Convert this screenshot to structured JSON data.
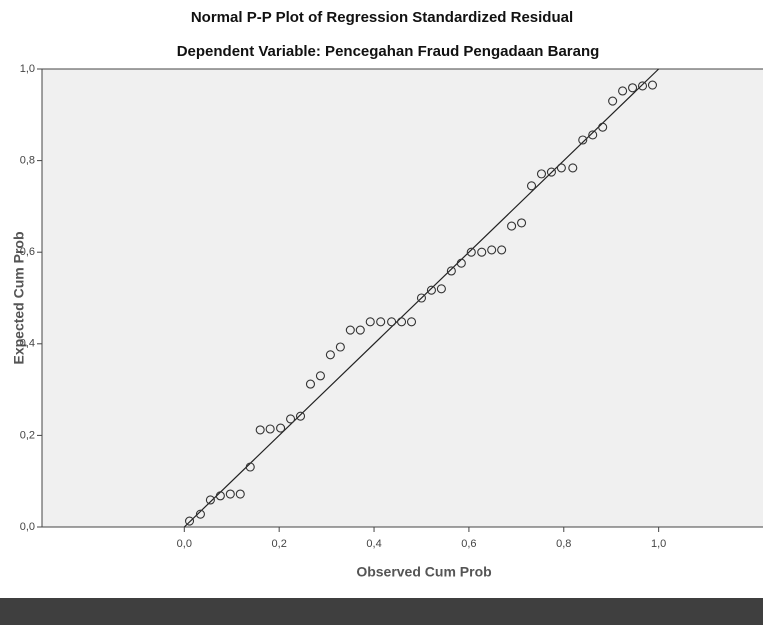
{
  "chart_data": {
    "type": "scatter",
    "title": "Normal P-P Plot of Regression Standardized Residual",
    "subtitle": "Dependent Variable: Pencegahan Fraud Pengadaan Barang",
    "x_label": "Observed Cum Prob",
    "y_label": "Expected Cum Prob",
    "xlim": [
      -0.3,
      1.22
    ],
    "ylim": [
      0,
      1
    ],
    "xticks": [
      {
        "value": 0,
        "label": "0,0"
      },
      {
        "value": 0.2,
        "label": "0,2"
      },
      {
        "value": 0.4,
        "label": "0,4"
      },
      {
        "value": 0.6,
        "label": "0,6"
      },
      {
        "value": 0.8,
        "label": "0,8"
      },
      {
        "value": 1,
        "label": "1,0"
      }
    ],
    "yticks": [
      {
        "value": 0,
        "label": "0,0"
      },
      {
        "value": 0.2,
        "label": "0,2"
      },
      {
        "value": 0.4,
        "label": "0,4"
      },
      {
        "value": 0.6,
        "label": "0,6"
      },
      {
        "value": 0.8,
        "label": "0,8"
      },
      {
        "value": 1,
        "label": "1,0"
      }
    ],
    "series": [
      {
        "color": "#333333",
        "x": [
          0.011,
          0.034,
          0.055,
          0.076,
          0.097,
          0.118,
          0.139,
          0.16,
          0.181,
          0.203,
          0.224,
          0.245,
          0.266,
          0.287,
          0.308,
          0.329,
          0.35,
          0.371,
          0.392,
          0.414,
          0.437,
          0.458,
          0.479,
          0.5,
          0.521,
          0.542,
          0.563,
          0.584,
          0.605,
          0.627,
          0.648,
          0.669,
          0.69,
          0.711,
          0.732,
          0.753,
          0.774,
          0.795,
          0.819,
          0.84,
          0.861,
          0.882,
          0.903,
          0.924,
          0.945,
          0.966,
          0.987
        ],
        "values": [
          0.013,
          0.028,
          0.059,
          0.068,
          0.072,
          0.072,
          0.131,
          0.212,
          0.214,
          0.216,
          0.236,
          0.242,
          0.312,
          0.33,
          0.376,
          0.393,
          0.43,
          0.43,
          0.448,
          0.448,
          0.448,
          0.448,
          0.448,
          0.5,
          0.517,
          0.52,
          0.559,
          0.576,
          0.6,
          0.6,
          0.605,
          0.605,
          0.657,
          0.664,
          0.745,
          0.771,
          0.775,
          0.784,
          0.784,
          0.845,
          0.856,
          0.873,
          0.93,
          0.952,
          0.959,
          0.963,
          0.965
        ]
      }
    ]
  }
}
